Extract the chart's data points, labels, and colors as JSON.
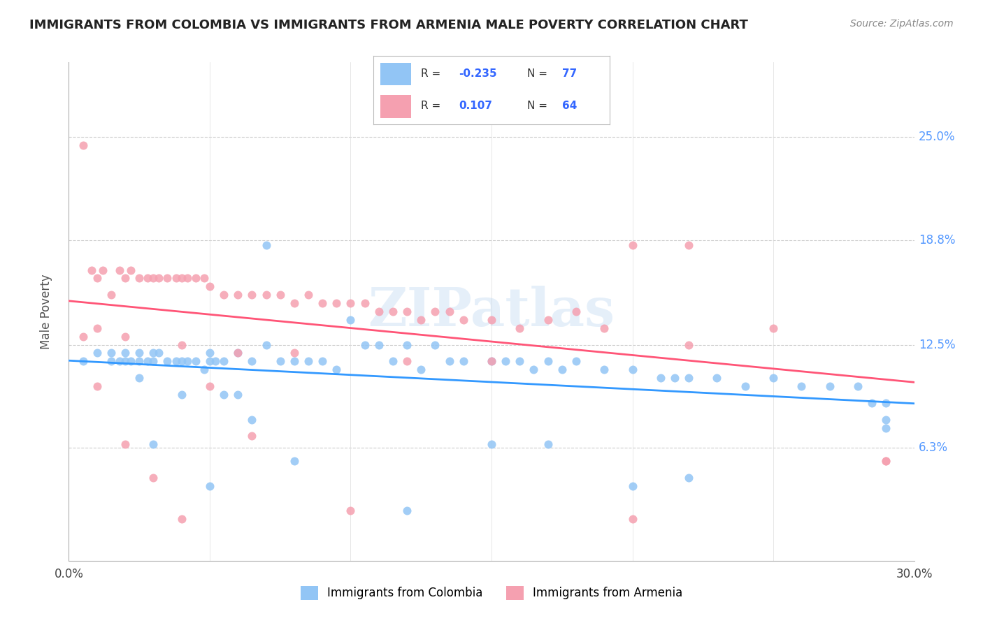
{
  "title": "IMMIGRANTS FROM COLOMBIA VS IMMIGRANTS FROM ARMENIA MALE POVERTY CORRELATION CHART",
  "source": "Source: ZipAtlas.com",
  "ylabel": "Male Poverty",
  "xlim": [
    0.0,
    0.3
  ],
  "ylim": [
    -0.005,
    0.295
  ],
  "yticks": [
    0.063,
    0.125,
    0.188,
    0.25
  ],
  "ytick_labels": [
    "6.3%",
    "12.5%",
    "18.8%",
    "25.0%"
  ],
  "colombia_color": "#92c5f5",
  "armenia_color": "#f5a0b0",
  "colombia_R": -0.235,
  "colombia_N": 77,
  "armenia_R": 0.107,
  "armenia_N": 64,
  "watermark": "ZIPatlas",
  "colombia_scatter_x": [
    0.005,
    0.01,
    0.015,
    0.015,
    0.018,
    0.02,
    0.02,
    0.022,
    0.025,
    0.025,
    0.028,
    0.03,
    0.03,
    0.032,
    0.035,
    0.038,
    0.04,
    0.042,
    0.045,
    0.048,
    0.05,
    0.05,
    0.052,
    0.055,
    0.06,
    0.065,
    0.07,
    0.075,
    0.08,
    0.085,
    0.09,
    0.095,
    0.1,
    0.105,
    0.11,
    0.115,
    0.12,
    0.125,
    0.13,
    0.135,
    0.14,
    0.15,
    0.155,
    0.16,
    0.165,
    0.17,
    0.175,
    0.18,
    0.19,
    0.2,
    0.21,
    0.215,
    0.22,
    0.23,
    0.24,
    0.25,
    0.26,
    0.27,
    0.28,
    0.285,
    0.29,
    0.29,
    0.29,
    0.15,
    0.17,
    0.2,
    0.22,
    0.12,
    0.08,
    0.05,
    0.03,
    0.025,
    0.04,
    0.055,
    0.06,
    0.065,
    0.07
  ],
  "colombia_scatter_y": [
    0.115,
    0.12,
    0.115,
    0.12,
    0.115,
    0.115,
    0.12,
    0.115,
    0.12,
    0.115,
    0.115,
    0.115,
    0.12,
    0.12,
    0.115,
    0.115,
    0.115,
    0.115,
    0.115,
    0.11,
    0.115,
    0.12,
    0.115,
    0.115,
    0.12,
    0.115,
    0.125,
    0.115,
    0.115,
    0.115,
    0.115,
    0.11,
    0.14,
    0.125,
    0.125,
    0.115,
    0.125,
    0.11,
    0.125,
    0.115,
    0.115,
    0.115,
    0.115,
    0.115,
    0.11,
    0.115,
    0.11,
    0.115,
    0.11,
    0.11,
    0.105,
    0.105,
    0.105,
    0.105,
    0.1,
    0.105,
    0.1,
    0.1,
    0.1,
    0.09,
    0.09,
    0.075,
    0.08,
    0.065,
    0.065,
    0.04,
    0.045,
    0.025,
    0.055,
    0.04,
    0.065,
    0.105,
    0.095,
    0.095,
    0.095,
    0.08,
    0.185
  ],
  "armenia_scatter_x": [
    0.005,
    0.008,
    0.01,
    0.012,
    0.015,
    0.018,
    0.02,
    0.022,
    0.025,
    0.028,
    0.03,
    0.032,
    0.035,
    0.038,
    0.04,
    0.042,
    0.045,
    0.048,
    0.05,
    0.055,
    0.06,
    0.065,
    0.07,
    0.075,
    0.08,
    0.085,
    0.09,
    0.095,
    0.1,
    0.105,
    0.11,
    0.115,
    0.12,
    0.125,
    0.13,
    0.135,
    0.14,
    0.15,
    0.16,
    0.17,
    0.18,
    0.19,
    0.2,
    0.22,
    0.25,
    0.29,
    0.01,
    0.02,
    0.03,
    0.04,
    0.05,
    0.065,
    0.1,
    0.2,
    0.22,
    0.15,
    0.12,
    0.08,
    0.06,
    0.04,
    0.02,
    0.01,
    0.005,
    0.29
  ],
  "armenia_scatter_y": [
    0.245,
    0.17,
    0.165,
    0.17,
    0.155,
    0.17,
    0.165,
    0.17,
    0.165,
    0.165,
    0.165,
    0.165,
    0.165,
    0.165,
    0.165,
    0.165,
    0.165,
    0.165,
    0.16,
    0.155,
    0.155,
    0.155,
    0.155,
    0.155,
    0.15,
    0.155,
    0.15,
    0.15,
    0.15,
    0.15,
    0.145,
    0.145,
    0.145,
    0.14,
    0.145,
    0.145,
    0.14,
    0.14,
    0.135,
    0.14,
    0.145,
    0.135,
    0.185,
    0.185,
    0.135,
    0.055,
    0.1,
    0.065,
    0.045,
    0.02,
    0.1,
    0.07,
    0.025,
    0.02,
    0.125,
    0.115,
    0.115,
    0.12,
    0.12,
    0.125,
    0.13,
    0.135,
    0.13,
    0.055
  ]
}
